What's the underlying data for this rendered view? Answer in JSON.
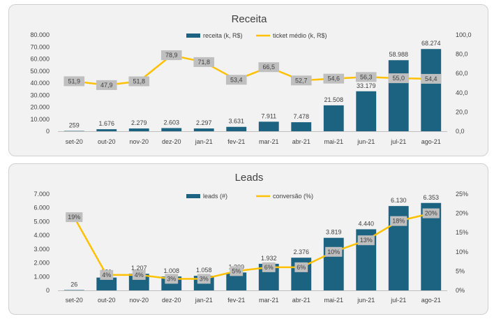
{
  "chart_data": [
    {
      "type": "bar",
      "title": "Receita",
      "categories": [
        "set-20",
        "out-20",
        "nov-20",
        "dez-20",
        "jan-21",
        "fev-21",
        "mar-21",
        "abr-21",
        "mai-21",
        "jun-21",
        "jul-21",
        "ago-21"
      ],
      "series": [
        {
          "name": "receita (k, R$)",
          "type": "bar",
          "axis": "left",
          "values": [
            259,
            1676,
            2279,
            2603,
            2297,
            3631,
            7911,
            7478,
            21508,
            33179,
            58988,
            68274
          ],
          "labels": [
            "259",
            "1.676",
            "2.279",
            "2.603",
            "2.297",
            "3.631",
            "7.911",
            "7.478",
            "21.508",
            "33.179",
            "58.988",
            "68.274"
          ]
        },
        {
          "name": "ticket médio (k, R$)",
          "type": "line",
          "axis": "right",
          "values": [
            51.9,
            47.9,
            51.8,
            78.9,
            71.8,
            53.4,
            66.5,
            52.7,
            54.6,
            56.3,
            55.0,
            54.4
          ],
          "labels": [
            "51,9",
            "47,9",
            "51,8",
            "78,9",
            "71,8",
            "53,4",
            "66,5",
            "52,7",
            "54,6",
            "56,3",
            "55,0",
            "54,4"
          ]
        }
      ],
      "ylim": [
        0,
        80000
      ],
      "yticks": [
        "0",
        "10.000",
        "20.000",
        "30.000",
        "40.000",
        "50.000",
        "60.000",
        "70.000",
        "80.000"
      ],
      "y2lim": [
        0,
        100
      ],
      "y2ticks": [
        "0,0",
        "20,0",
        "40,0",
        "60,0",
        "80,0",
        "100,0"
      ],
      "legend": "top-center",
      "grid": false,
      "colors": {
        "bar": "#1b6380",
        "line": "#ffc000",
        "label_box": "#bfbfbf"
      }
    },
    {
      "type": "bar",
      "title": "Leads",
      "categories": [
        "set-20",
        "out-20",
        "nov-20",
        "dez-20",
        "jan-21",
        "fev-21",
        "mar-21",
        "abr-21",
        "mai-21",
        "jun-21",
        "jul-21",
        "ago-21"
      ],
      "series": [
        {
          "name": "leads (#)",
          "type": "bar",
          "axis": "left",
          "values": [
            26,
            931,
            1207,
            1008,
            1058,
            1300,
            1932,
            2376,
            3819,
            4440,
            6130,
            6353
          ],
          "labels": [
            "26",
            "931",
            "1.207",
            "1.008",
            "1.058",
            "1.300",
            "1.932",
            "2.376",
            "3.819",
            "4.440",
            "6.130",
            "6.353"
          ]
        },
        {
          "name": "conversão (%)",
          "type": "line",
          "axis": "right",
          "values": [
            19,
            4,
            4,
            3,
            3,
            5,
            6,
            6,
            10,
            13,
            18,
            20
          ],
          "labels": [
            "19%",
            "4%",
            "4%",
            "3%",
            "3%",
            "5%",
            "6%",
            "6%",
            "10%",
            "13%",
            "18%",
            "20%"
          ]
        }
      ],
      "ylim": [
        0,
        7000
      ],
      "yticks": [
        "0",
        "1.000",
        "2.000",
        "3.000",
        "4.000",
        "5.000",
        "6.000",
        "7.000"
      ],
      "y2lim": [
        0,
        25
      ],
      "y2ticks": [
        "0%",
        "5%",
        "10%",
        "15%",
        "20%",
        "25%"
      ],
      "legend": "top-center",
      "grid": false,
      "colors": {
        "bar": "#1b6380",
        "line": "#ffc000",
        "label_box": "#bfbfbf"
      }
    }
  ]
}
